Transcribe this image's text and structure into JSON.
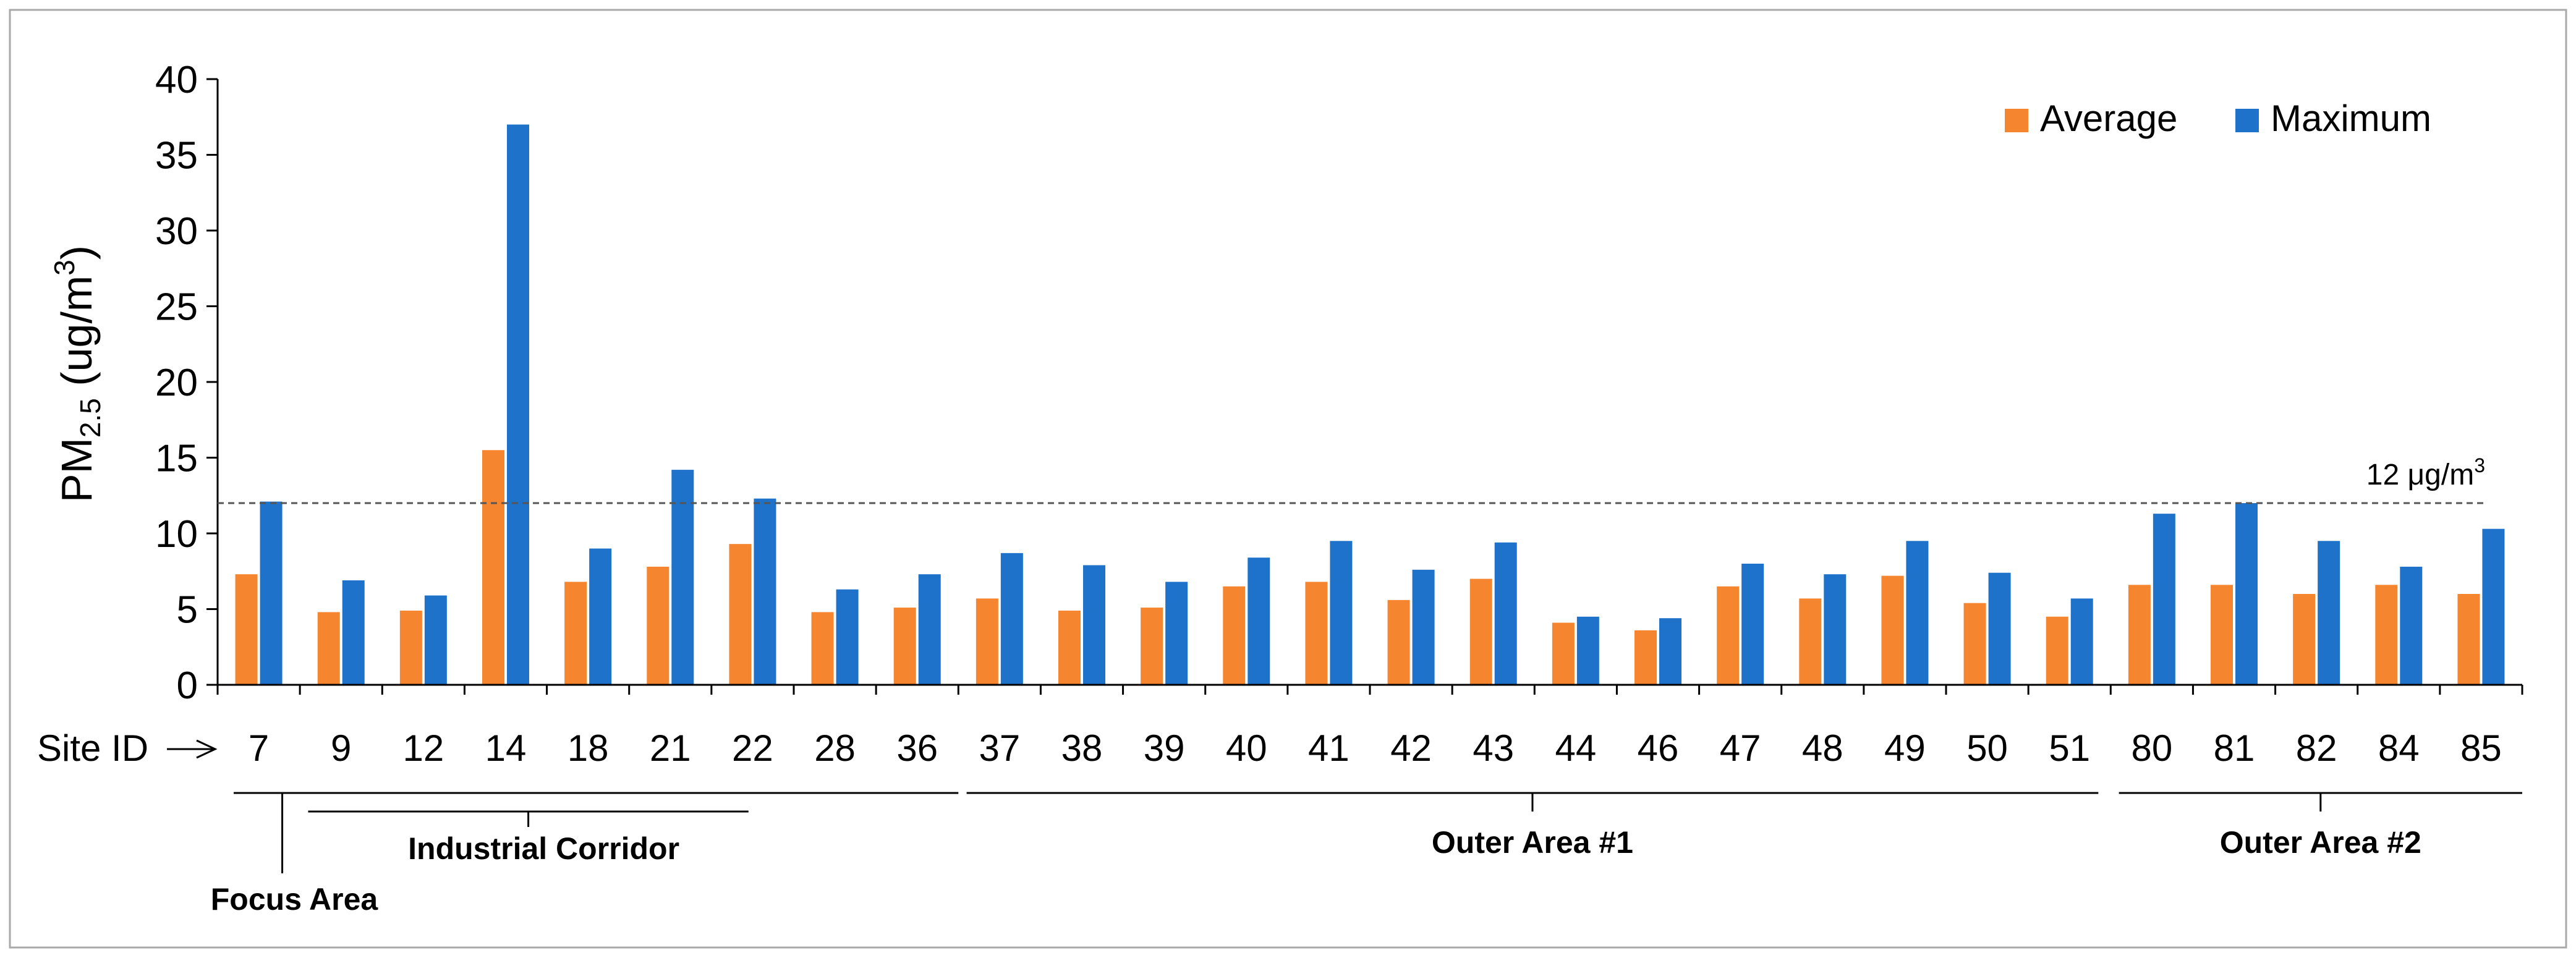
{
  "chart_data": {
    "type": "bar",
    "ylabel_main": "PM",
    "ylabel_sub": "2.5",
    "ylabel_unit_pre": " (ug/m",
    "ylabel_unit_sup": "3",
    "ylabel_unit_post": ")",
    "ylim": [
      0,
      40
    ],
    "yticks": [
      "0",
      "5",
      "10",
      "15",
      "20",
      "25",
      "30",
      "35",
      "40"
    ],
    "xlabel": "Site ID",
    "categories": [
      "7",
      "9",
      "12",
      "14",
      "18",
      "21",
      "22",
      "28",
      "36",
      "37",
      "38",
      "39",
      "40",
      "41",
      "42",
      "43",
      "44",
      "46",
      "47",
      "48",
      "49",
      "50",
      "51",
      "80",
      "81",
      "82",
      "84",
      "85"
    ],
    "series": [
      {
        "name": "Average",
        "color": "#f5852f",
        "values": [
          7.3,
          4.8,
          4.9,
          15.5,
          6.8,
          7.8,
          9.3,
          4.8,
          5.1,
          5.7,
          4.9,
          5.1,
          6.5,
          6.8,
          5.6,
          7.0,
          4.1,
          3.6,
          6.5,
          5.7,
          7.2,
          5.4,
          4.5,
          6.6,
          6.6,
          6.0,
          6.6,
          6.0
        ]
      },
      {
        "name": "Maximum",
        "color": "#1f72c9",
        "values": [
          12.1,
          6.9,
          5.9,
          37.0,
          9.0,
          14.2,
          12.3,
          6.3,
          7.3,
          8.7,
          7.9,
          6.8,
          8.4,
          9.5,
          7.6,
          9.4,
          4.5,
          4.4,
          8.0,
          7.3,
          9.5,
          7.4,
          5.7,
          11.3,
          12.0,
          9.5,
          7.8,
          10.3
        ]
      }
    ],
    "reference_line": {
      "value": 12,
      "label_pre": "12 μg/m",
      "label_sup": "3"
    },
    "groups": [
      {
        "label": "Focus Area",
        "from": "7",
        "to": "7"
      },
      {
        "label": "Industrial Corridor",
        "from": "9",
        "to": "22"
      },
      {
        "label": "Outer Area #1",
        "from": "37",
        "to": "51"
      },
      {
        "label": "Outer Area #2",
        "from": "80",
        "to": "85"
      }
    ],
    "legend_position": "top-right",
    "grid": false
  }
}
